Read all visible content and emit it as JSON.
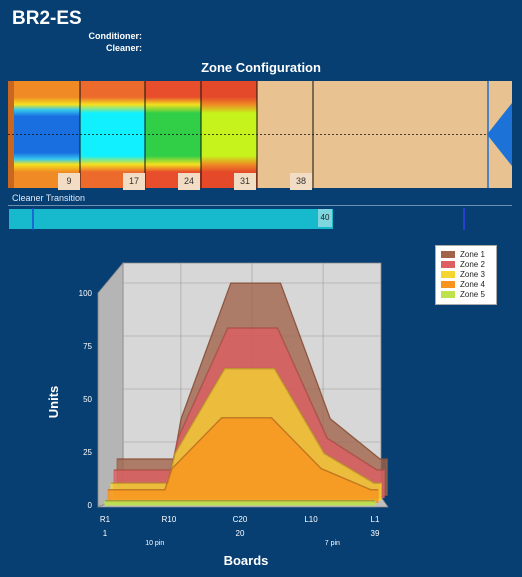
{
  "header": {
    "title": "BR2-ES",
    "conditioner_label": "Conditioner:",
    "cleaner_label": "Cleaner:"
  },
  "zone_config": {
    "title": "Zone Configuration",
    "boundaries": [
      "9",
      "17",
      "24",
      "31",
      "38"
    ]
  },
  "cleaner_transition": {
    "label": "Cleaner Transition",
    "value": "40",
    "fill_fraction": 0.645
  },
  "legend": [
    {
      "label": "Zone 1",
      "color": "#a1634a"
    },
    {
      "label": "Zone 2",
      "color": "#dd5f62"
    },
    {
      "label": "Zone 3",
      "color": "#f4d531"
    },
    {
      "label": "Zone 4",
      "color": "#f9941e"
    },
    {
      "label": "Zone 5",
      "color": "#bde24c"
    }
  ],
  "chart_data": {
    "type": "area",
    "title": "",
    "xlabel": "Boards",
    "ylabel": "Units",
    "ylim": [
      0,
      100
    ],
    "yticks": [
      "0",
      "25",
      "50",
      "75",
      "100"
    ],
    "x_ticks_top": [
      "R1",
      "R10",
      "C20",
      "L10",
      "L1"
    ],
    "x_ticks_bottom": [
      "1",
      "20",
      "39"
    ],
    "x_sub_labels": [
      "10 pin",
      "7 pin"
    ],
    "x": [
      1,
      9,
      10,
      17,
      24,
      31,
      38,
      39
    ],
    "series": [
      {
        "name": "Zone 1",
        "values": [
          17,
          17,
          36,
          100,
          100,
          36,
          17,
          17
        ]
      },
      {
        "name": "Zone 2",
        "values": [
          13,
          13,
          28,
          80,
          80,
          28,
          13,
          13
        ]
      },
      {
        "name": "Zone 3",
        "values": [
          8,
          8,
          22,
          62,
          62,
          22,
          8,
          8
        ]
      },
      {
        "name": "Zone 4",
        "values": [
          6,
          6,
          16,
          40,
          40,
          16,
          6,
          6
        ]
      },
      {
        "name": "Zone 5",
        "values": [
          2,
          2,
          2,
          2,
          2,
          2,
          2,
          2
        ]
      }
    ]
  }
}
